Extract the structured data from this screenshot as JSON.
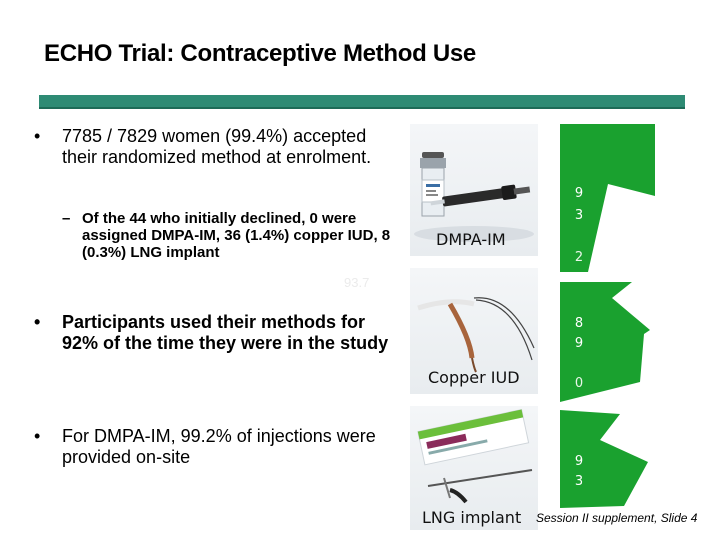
{
  "slide": {
    "title": "ECHO Trial: Contraceptive Method Use",
    "footer": "Session II supplement, Slide 4"
  },
  "content": {
    "bullet1": {
      "marker": "•",
      "text": "7785 / 7829 women (99.4%) accepted their randomized method at enrolment."
    },
    "sub1": {
      "marker": "–",
      "text": "Of the 44 who initially declined, 0 were assigned DMPA-IM, 36 (1.4%) copper IUD, 8 (0.3%) LNG implant"
    },
    "ghost_number": "93.7",
    "bullet2": {
      "marker": "•",
      "text": "Participants used their methods for 92% of the time they were in the study"
    },
    "bullet3": {
      "marker": "•",
      "text": "For DMPA-IM, 99.2% of injections were provided on-site"
    }
  },
  "methods": [
    {
      "label": "DMPA-IM",
      "pie_line1": "9",
      "pie_line2": "3",
      "pie_extra": "2"
    },
    {
      "label": "Copper IUD",
      "pie_line1": "8",
      "pie_line2": "9",
      "pie_extra": "0"
    },
    {
      "label": "LNG implant",
      "pie_line1": "9",
      "pie_line2": "3",
      "pie_extra": ""
    }
  ],
  "colors": {
    "accent_bar": "#2e8b74",
    "pie_green": "#1aa12f",
    "product_box": "#6bbf3b"
  }
}
